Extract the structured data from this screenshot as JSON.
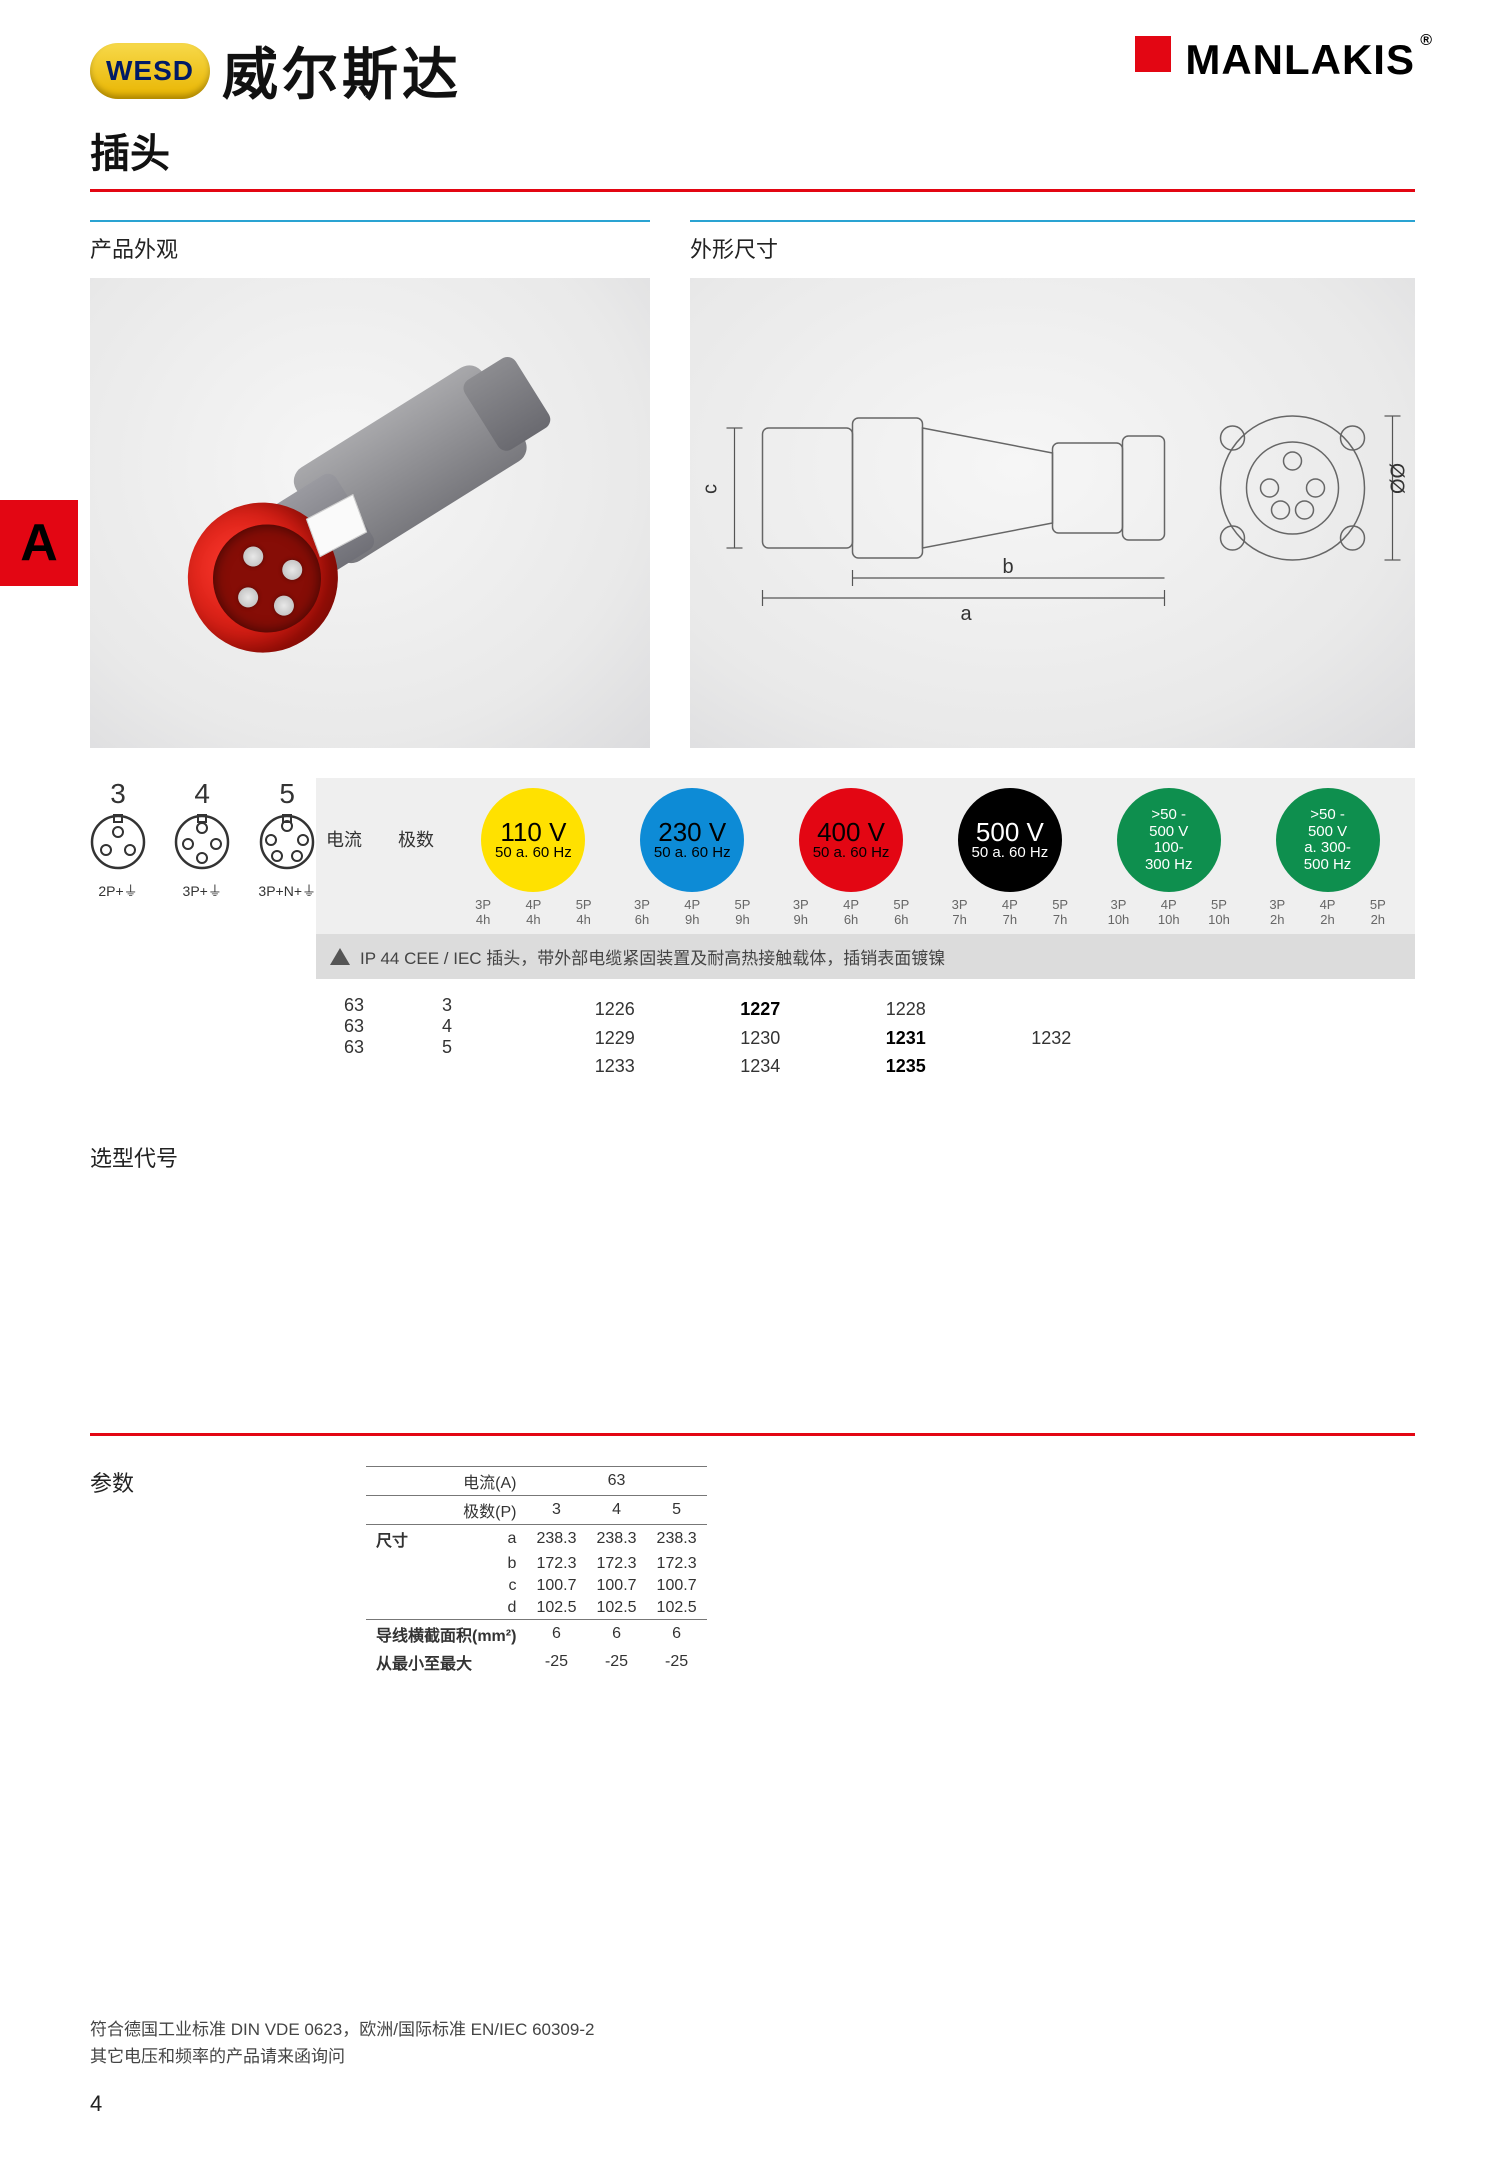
{
  "header": {
    "wesd": "WESD",
    "brand_cn": "威尔斯达",
    "manlakis": "MANLAKIS"
  },
  "page_title": "插头",
  "subheads": {
    "left": "产品外观",
    "right": "外形尺寸"
  },
  "side_tab": "A",
  "drawing_dims": {
    "a": "a",
    "b": "b",
    "c": "c",
    "d": "ØØ"
  },
  "pins": [
    {
      "n": "3",
      "label": "2P+⏚"
    },
    {
      "n": "4",
      "label": "3P+⏚"
    },
    {
      "n": "5",
      "label": "3P+N+⏚"
    }
  ],
  "lead": {
    "col1": "电流",
    "col2": "极数"
  },
  "voltages": [
    {
      "bg": "#ffe100",
      "fg": "#000000",
      "top": "110 V",
      "bot": "50 a. 60 Hz",
      "cols": [
        "3P 4h",
        "4P 4h",
        "5P 4h"
      ]
    },
    {
      "bg": "#0d8bd6",
      "fg": "#000000",
      "top": "230 V",
      "bot": "50 a. 60 Hz",
      "cols": [
        "3P 6h",
        "4P 9h",
        "5P 9h"
      ]
    },
    {
      "bg": "#e30613",
      "fg": "#000000",
      "top": "400 V",
      "bot": "50 a. 60 Hz",
      "cols": [
        "3P 9h",
        "4P 6h",
        "5P 6h"
      ]
    },
    {
      "bg": "#000000",
      "fg": "#ffffff",
      "top": "500 V",
      "bot": "50 a. 60 Hz",
      "cols": [
        "3P 7h",
        "4P 7h",
        "5P 7h"
      ]
    },
    {
      "bg": "#0e8f4e",
      "fg": "#ffffff",
      "top": ">50 -\n500 V",
      "bot": "100-\n300 Hz",
      "cols": [
        "3P 10h",
        "4P 10h",
        "5P 10h"
      ]
    },
    {
      "bg": "#0e8f4e",
      "fg": "#ffffff",
      "top": ">50 -\n500 V",
      "bot": "a. 300-\n500 Hz",
      "cols": [
        "3P 2h",
        "4P 2h",
        "5P 2h"
      ]
    }
  ],
  "ip_text": "IP 44 CEE / IEC 插头，带外部电缆紧固装置及耐高热接触载体，插销表面镀镍",
  "models": {
    "currents": [
      "63",
      "63",
      "63"
    ],
    "poles": [
      "3",
      "4",
      "5"
    ],
    "grid": [
      [
        "1226",
        "1227",
        "1228",
        "",
        "",
        ""
      ],
      [
        "1229",
        "1230",
        "1231",
        "1232",
        "",
        ""
      ],
      [
        "1233",
        "1234",
        "1235",
        "",
        "",
        ""
      ]
    ],
    "bold": [
      [
        0,
        1
      ],
      [
        1,
        2
      ],
      [
        2,
        2
      ]
    ]
  },
  "sel_label": "选型代号",
  "params_label": "参数",
  "params": {
    "current_label": "电流(A)",
    "current_val": "63",
    "poles_label": "极数(P)",
    "poles_vals": [
      "3",
      "4",
      "5"
    ],
    "dim_label": "尺寸",
    "rows": [
      {
        "k": "a",
        "v": [
          "238.3",
          "238.3",
          "238.3"
        ]
      },
      {
        "k": "b",
        "v": [
          "172.3",
          "172.3",
          "172.3"
        ]
      },
      {
        "k": "c",
        "v": [
          "100.7",
          "100.7",
          "100.7"
        ]
      },
      {
        "k": "d",
        "v": [
          "102.5",
          "102.5",
          "102.5"
        ]
      }
    ],
    "cross_label": "导线横截面积(mm²)",
    "cross_vals": [
      "6",
      "6",
      "6"
    ],
    "range_label": "从最小至最大",
    "range_vals": [
      "-25",
      "-25",
      "-25"
    ]
  },
  "footnote": {
    "l1": "符合德国工业标准 DIN VDE 0623，欧洲/国际标准 EN/IEC 60309-2",
    "l2": "其它电压和频率的产品请来函询问"
  },
  "page_number": "4"
}
